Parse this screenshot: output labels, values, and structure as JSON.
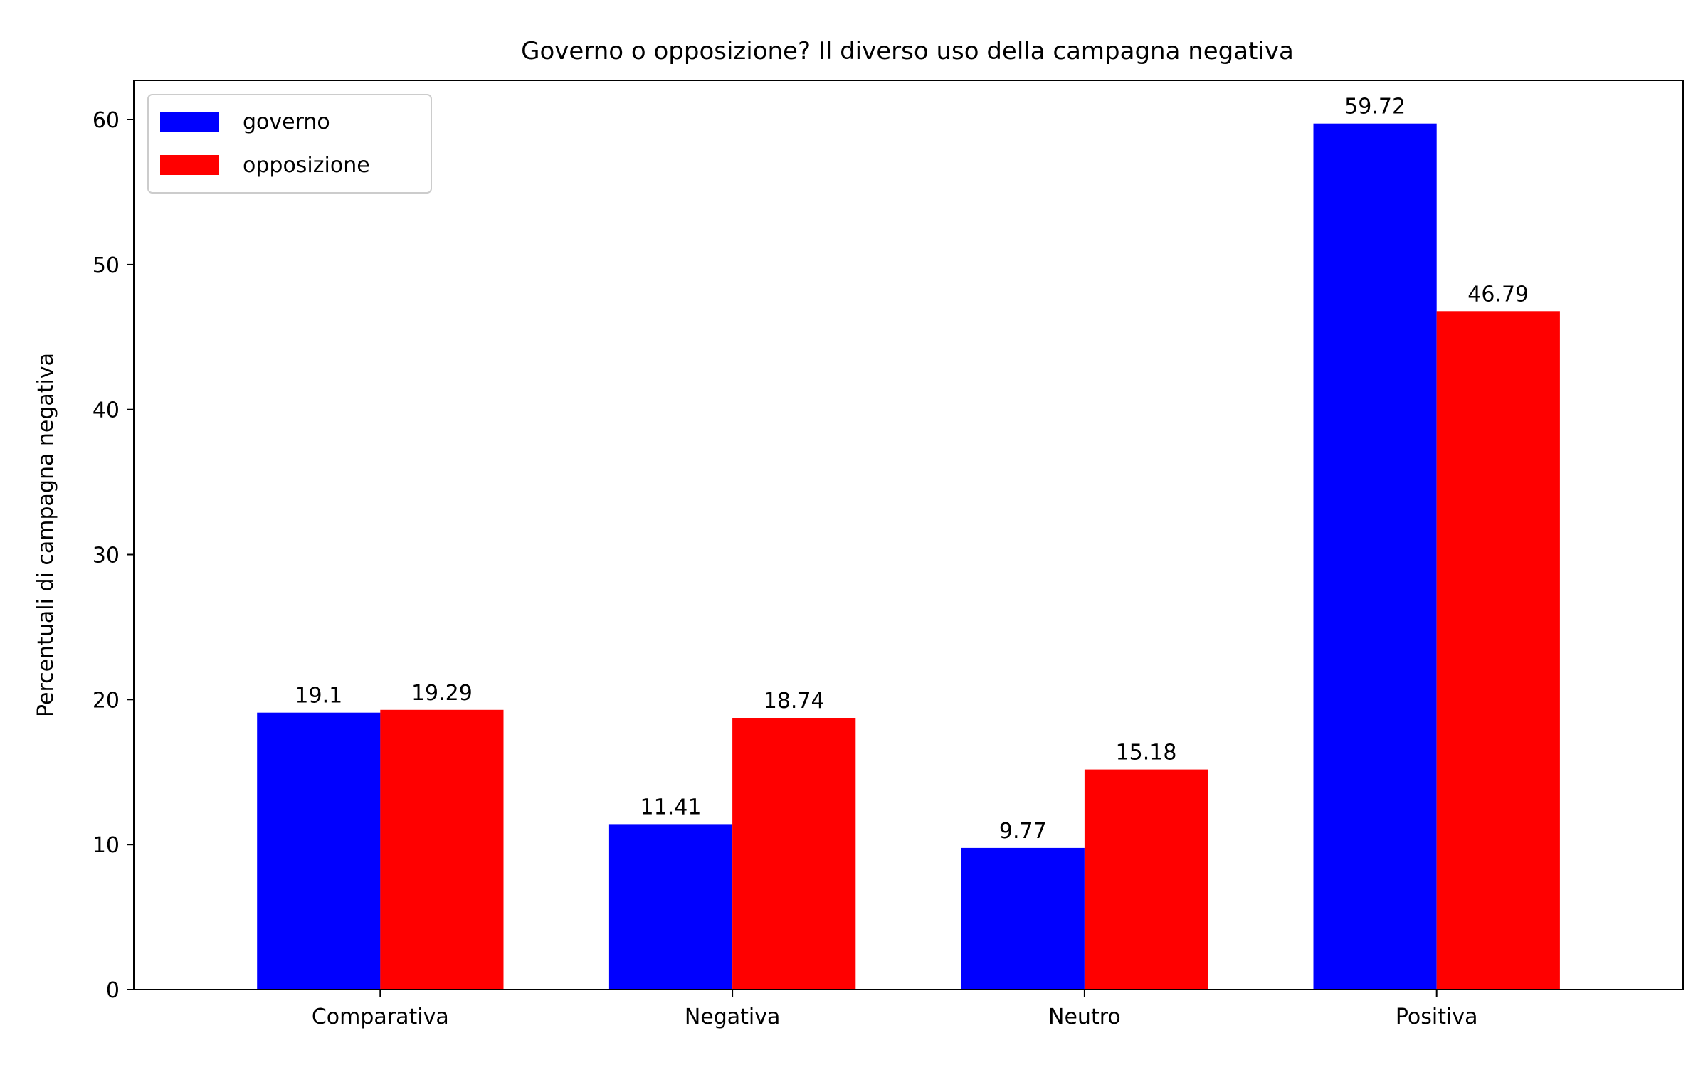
{
  "chart_data": {
    "type": "bar",
    "title": "Governo o opposizione? Il diverso uso della campagna negativa",
    "xlabel": "",
    "ylabel": "Percentuali di campagna negativa",
    "categories": [
      "Comparativa",
      "Negativa",
      "Neutro",
      "Positiva"
    ],
    "series": [
      {
        "name": "governo",
        "values": [
          19.1,
          11.41,
          9.77,
          59.72
        ],
        "color": "#0000ff"
      },
      {
        "name": "opposizione",
        "values": [
          19.29,
          18.74,
          15.18,
          46.79
        ],
        "color": "#ff0000"
      }
    ],
    "data_labels": [
      [
        "19.1",
        "11.41",
        "9.77",
        "59.72"
      ],
      [
        "19.29",
        "18.74",
        "15.18",
        "46.79"
      ]
    ],
    "ylim": [
      0,
      62.7
    ],
    "yticks": [
      0,
      10,
      20,
      30,
      40,
      50,
      60
    ],
    "ytick_labels": [
      "0",
      "10",
      "20",
      "30",
      "40",
      "50",
      "60"
    ],
    "grid": false,
    "legend_position": "top-left"
  }
}
